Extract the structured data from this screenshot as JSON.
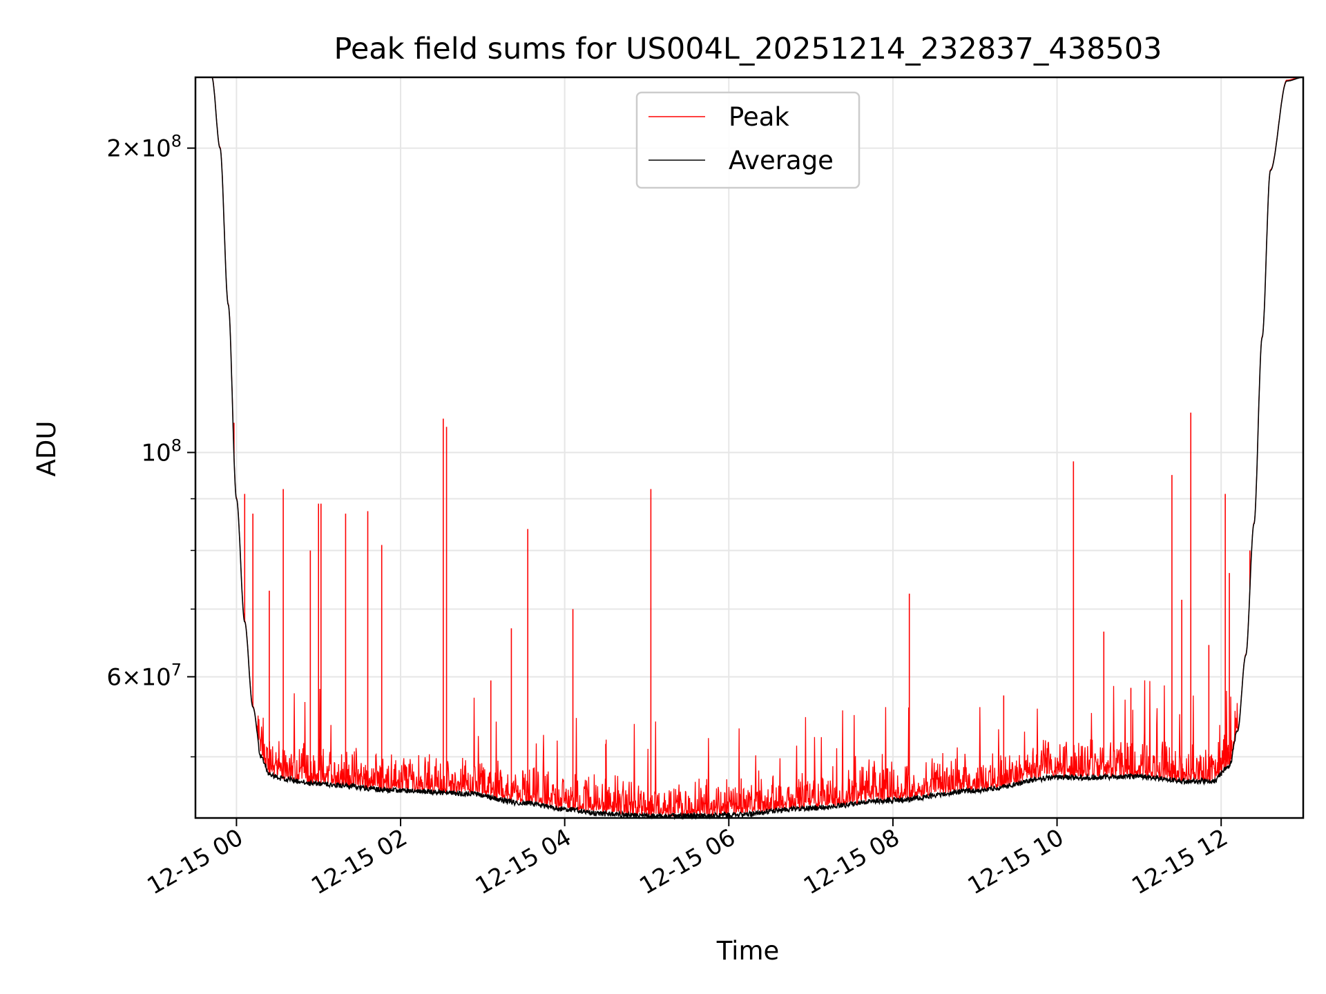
{
  "chart_data": {
    "type": "line",
    "title": "Peak field sums for US004L_20251214_232837_438503",
    "xlabel": "Time",
    "ylabel": "ADU",
    "yscale": "log",
    "ylim": [
      43500000,
      235000000
    ],
    "xlim_hours": [
      -0.5,
      13.0
    ],
    "grid": true,
    "legend_location": "upper center",
    "x_tick_labels": [
      "12-15 00",
      "12-15 02",
      "12-15 04",
      "12-15 06",
      "12-15 08",
      "12-15 10",
      "12-15 12"
    ],
    "x_tick_hours": [
      0,
      2,
      4,
      6,
      8,
      10,
      12
    ],
    "y_tick_labels": [
      {
        "value": 200000000,
        "mantissa": "2",
        "exponent": "8"
      },
      {
        "value": 100000000,
        "mantissa": "",
        "exponent": "8"
      },
      {
        "value": 60000000,
        "mantissa": "6",
        "exponent": "7"
      }
    ],
    "y_minor_ticks": [
      50000000,
      70000000,
      80000000,
      90000000
    ],
    "series": [
      {
        "name": "Peak",
        "color": "#ff0000"
      },
      {
        "name": "Average",
        "color": "#000000"
      }
    ],
    "average_curve": {
      "hours": [
        -0.5,
        -0.3,
        -0.2,
        -0.1,
        0.0,
        0.1,
        0.2,
        0.3,
        0.4,
        0.6,
        1.0,
        2.0,
        2.8,
        3.5,
        4.0,
        4.5,
        5.0,
        5.5,
        6.0,
        7.0,
        8.0,
        9.0,
        10.0,
        11.0,
        11.6,
        11.9,
        12.1,
        12.2,
        12.3,
        12.4,
        12.5,
        12.6,
        12.8,
        13.0
      ],
      "values": [
        235000000,
        235000000,
        200000000,
        140000000,
        90000000,
        68000000,
        56000000,
        50000000,
        48000000,
        47500000,
        47000000,
        46300000,
        46000000,
        45000000,
        44400000,
        43900000,
        43700000,
        43700000,
        43800000,
        44500000,
        45300000,
        46300000,
        47700000,
        47800000,
        47300000,
        47300000,
        49000000,
        53000000,
        63000000,
        85000000,
        130000000,
        190000000,
        233000000,
        235000000
      ]
    },
    "peak_spikes": [
      {
        "hour": -0.03,
        "value": 107000000
      },
      {
        "hour": 0.1,
        "value": 91000000
      },
      {
        "hour": 0.2,
        "value": 87000000
      },
      {
        "hour": 0.4,
        "value": 73000000
      },
      {
        "hour": 0.57,
        "value": 92000000
      },
      {
        "hour": 0.9,
        "value": 80000000
      },
      {
        "hour": 1.0,
        "value": 89000000
      },
      {
        "hour": 1.03,
        "value": 89000000
      },
      {
        "hour": 1.33,
        "value": 87000000
      },
      {
        "hour": 1.6,
        "value": 87500000
      },
      {
        "hour": 1.77,
        "value": 81000000
      },
      {
        "hour": 2.52,
        "value": 108000000
      },
      {
        "hour": 2.56,
        "value": 106000000
      },
      {
        "hour": 3.1,
        "value": 59500000
      },
      {
        "hour": 3.35,
        "value": 67000000
      },
      {
        "hour": 3.55,
        "value": 84000000
      },
      {
        "hour": 4.1,
        "value": 70000000
      },
      {
        "hour": 4.5,
        "value": 51500000
      },
      {
        "hour": 5.05,
        "value": 92000000
      },
      {
        "hour": 8.2,
        "value": 72500000
      },
      {
        "hour": 9.35,
        "value": 57500000
      },
      {
        "hour": 10.2,
        "value": 98000000
      },
      {
        "hour": 10.57,
        "value": 66500000
      },
      {
        "hour": 10.9,
        "value": 58500000
      },
      {
        "hour": 11.4,
        "value": 95000000
      },
      {
        "hour": 11.52,
        "value": 71500000
      },
      {
        "hour": 11.63,
        "value": 109500000
      },
      {
        "hour": 11.85,
        "value": 64500000
      },
      {
        "hour": 12.05,
        "value": 91000000
      },
      {
        "hour": 12.1,
        "value": 76000000
      },
      {
        "hour": 12.35,
        "value": 80000000
      }
    ]
  }
}
